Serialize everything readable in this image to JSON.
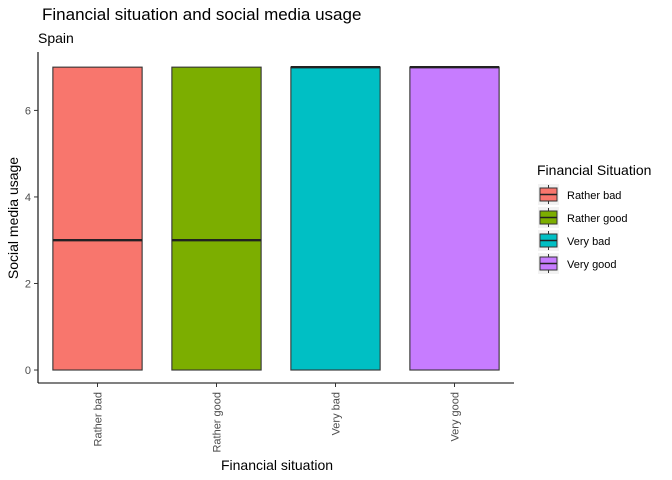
{
  "chart_data": {
    "type": "boxplot",
    "title": "Financial situation and social media usage",
    "subtitle": "Spain",
    "xlabel": "Financial situation",
    "ylabel": "Social media usage",
    "ylim": [
      -0.3,
      7.35
    ],
    "yticks": [
      0,
      2,
      4,
      6
    ],
    "categories": [
      "Rather bad",
      "Rather good",
      "Very bad",
      "Very good"
    ],
    "boxes": [
      {
        "category": "Rather bad",
        "lower": 0,
        "q1": 0,
        "median": 3,
        "q3": 7,
        "upper": 7,
        "color": "#F8766D"
      },
      {
        "category": "Rather good",
        "lower": 0,
        "q1": 0,
        "median": 3,
        "q3": 7,
        "upper": 7,
        "color": "#7CAE00"
      },
      {
        "category": "Very bad",
        "lower": 0,
        "q1": 0,
        "median": 7,
        "q3": 7,
        "upper": 7,
        "color": "#00BFC4"
      },
      {
        "category": "Very good",
        "lower": 0,
        "q1": 0,
        "median": 7,
        "q3": 7,
        "upper": 7,
        "color": "#C77CFF"
      }
    ],
    "legend": {
      "title": "Financial Situation",
      "position": "right",
      "items": [
        "Rather bad",
        "Rather good",
        "Very bad",
        "Very good"
      ]
    },
    "grid": false
  }
}
